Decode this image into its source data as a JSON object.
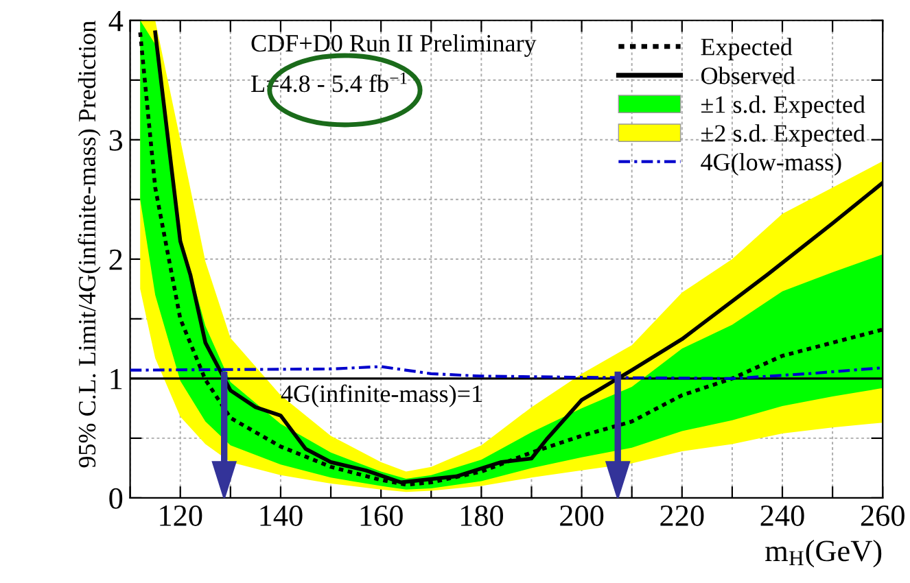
{
  "chart_data": {
    "type": "line",
    "xlabel": "m$_{H}$(GeV)",
    "ylabel": "95% C.L. Limit/4G(infinite-mass) Prediction",
    "annotations": [
      "CDF+D0 Run II Preliminary",
      "L=4.8 - 5.4 fb$^{−1}$"
    ],
    "xlim": [
      110,
      260
    ],
    "ylim": [
      0,
      4
    ],
    "xticks": [
      {
        "value": 110,
        "label": null
      },
      120,
      {
        "value": 130,
        "label": null
      },
      140,
      {
        "value": 150,
        "label": null
      },
      160,
      {
        "value": 170,
        "label": null
      },
      180,
      {
        "value": 190,
        "label": null
      },
      200,
      {
        "value": 210,
        "label": null
      },
      220,
      {
        "value": 230,
        "label": null
      },
      240,
      {
        "value": 250,
        "label": null
      },
      260
    ],
    "yticks": [
      0,
      {
        "value": 0.5,
        "label": null
      },
      1,
      {
        "value": 1.5,
        "label": null
      },
      2,
      {
        "value": 2.5,
        "label": null
      },
      3,
      {
        "value": 3.5,
        "label": null
      },
      4
    ],
    "grid": true,
    "legend": "top right",
    "ref_lines": [
      {
        "axis": "y",
        "value": 1,
        "label": "4G(infinite-mass)=1",
        "color": "#000000",
        "line_style": "solid"
      }
    ],
    "series": [
      {
        "name": "Expected",
        "color": "#000000",
        "line_style": "dotted",
        "x": [
          112,
          115,
          120,
          125,
          130,
          140,
          150,
          160,
          165,
          170,
          180,
          190,
          200,
          210,
          220,
          230,
          240,
          250,
          260
        ],
        "values": [
          3.9,
          2.6,
          1.5,
          0.99,
          0.67,
          0.43,
          0.26,
          0.15,
          0.11,
          0.13,
          0.22,
          0.38,
          0.52,
          0.64,
          0.86,
          1.0,
          1.19,
          1.3,
          1.41
        ]
      },
      {
        "name": "Observed",
        "color": "#000000",
        "line_style": "solid",
        "x": [
          115,
          120,
          122,
          125,
          130,
          135,
          140,
          145,
          150,
          157,
          164,
          175,
          184,
          190,
          193,
          200,
          204,
          210,
          220,
          237,
          250,
          260
        ],
        "values": [
          3.9,
          2.15,
          1.87,
          1.3,
          0.9,
          0.76,
          0.69,
          0.41,
          0.3,
          0.23,
          0.13,
          0.18,
          0.3,
          0.33,
          0.49,
          0.82,
          0.92,
          1.07,
          1.33,
          1.87,
          2.3,
          2.64
        ]
      },
      {
        "name": "±1 s.d. Expected",
        "color": "#00ff00",
        "x": [
          112,
          115,
          120,
          125,
          130,
          140,
          150,
          160,
          165,
          170,
          180,
          190,
          200,
          210,
          220,
          230,
          240,
          250,
          260
        ],
        "values": [
          null,
          null,
          null,
          null,
          null,
          null,
          null,
          null,
          null,
          null,
          null,
          null,
          null,
          null,
          null,
          null,
          null,
          null,
          null
        ],
        "lower": [
          2.5,
          1.7,
          0.98,
          0.64,
          0.44,
          0.28,
          0.17,
          0.1,
          0.07,
          0.08,
          0.14,
          0.25,
          0.34,
          0.42,
          0.56,
          0.65,
          0.77,
          0.85,
          0.92
        ],
        "upper": [
          4.0,
          3.8,
          2.2,
          1.44,
          0.97,
          0.62,
          0.38,
          0.22,
          0.16,
          0.19,
          0.32,
          0.55,
          0.75,
          0.93,
          1.25,
          1.45,
          1.73,
          1.89,
          2.04
        ]
      },
      {
        "name": "±2 s.d. Expected",
        "color": "#ffff00",
        "x": [
          112,
          115,
          120,
          125,
          130,
          140,
          150,
          160,
          165,
          170,
          180,
          190,
          200,
          210,
          220,
          230,
          240,
          250,
          260
        ],
        "values": [
          null,
          null,
          null,
          null,
          null,
          null,
          null,
          null,
          null,
          null,
          null,
          null,
          null,
          null,
          null,
          null,
          null,
          null,
          null
        ],
        "lower": [
          1.75,
          1.17,
          0.68,
          0.45,
          0.3,
          0.19,
          0.12,
          0.07,
          0.05,
          0.06,
          0.1,
          0.17,
          0.23,
          0.29,
          0.39,
          0.45,
          0.54,
          0.59,
          0.63
        ],
        "upper": [
          4.0,
          4.0,
          3.0,
          1.98,
          1.34,
          0.86,
          0.52,
          0.3,
          0.22,
          0.26,
          0.44,
          0.76,
          1.04,
          1.28,
          1.72,
          2.0,
          2.38,
          2.6,
          2.82
        ]
      },
      {
        "name": "4G(low-mass)",
        "color": "#0000cc",
        "line_style": "dashdot",
        "x": [
          110,
          150,
          160,
          170,
          180,
          200,
          230,
          245,
          260
        ],
        "values": [
          1.07,
          1.08,
          1.1,
          1.04,
          1.02,
          1.01,
          1.0,
          1.04,
          1.09
        ]
      }
    ]
  }
}
